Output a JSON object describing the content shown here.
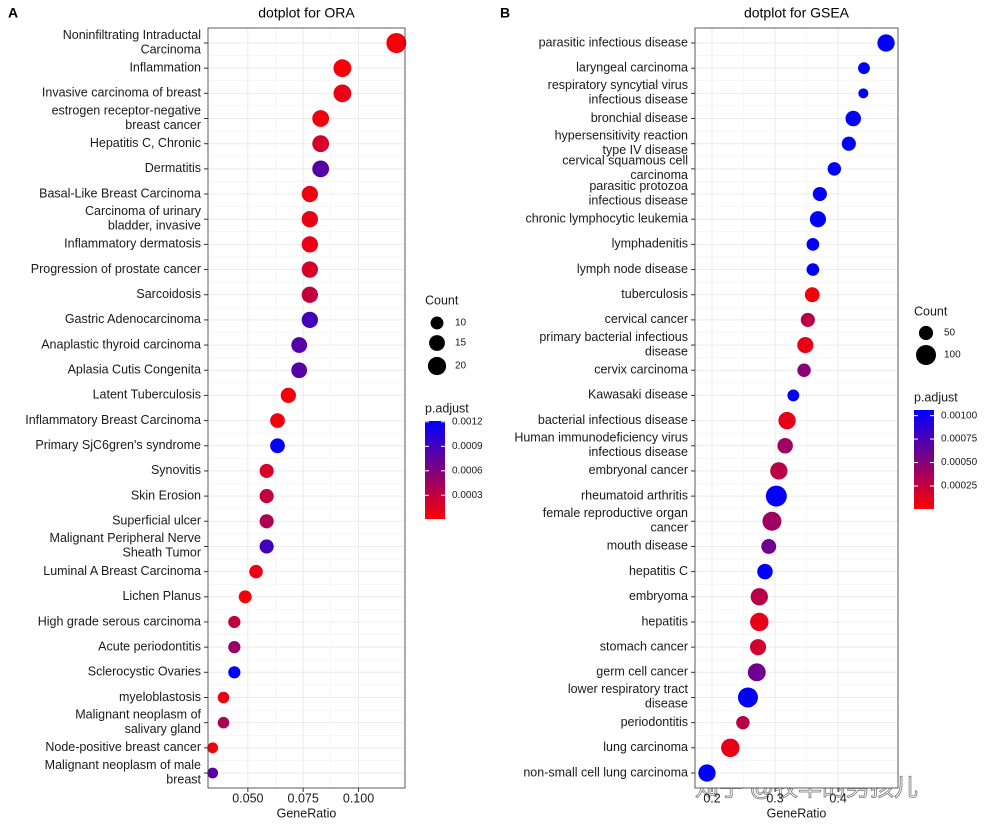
{
  "watermark": "知乎 @牧羊的男孩儿",
  "chart_data": [
    {
      "type": "dot",
      "panel_label": "A",
      "title": "dotplot for ORA",
      "x_label": "GeneRatio",
      "categories": [
        "Noninfiltrating Intraductal\nCarcinoma",
        "Inflammation",
        "Invasive carcinoma of breast",
        "estrogen receptor-negative\nbreast cancer",
        "Hepatitis C, Chronic",
        "Dermatitis",
        "Basal-Like Breast Carcinoma",
        "Carcinoma of urinary\nbladder, invasive",
        "Inflammatory dermatosis",
        "Progression of prostate cancer",
        "Sarcoidosis",
        "Gastric Adenocarcinoma",
        "Anaplastic thyroid carcinoma",
        "Aplasia Cutis Congenita",
        "Latent Tuberculosis",
        "Inflammatory Breast Carcinoma",
        "Primary SjC6gren's syndrome",
        "Synovitis",
        "Skin Erosion",
        "Superficial ulcer",
        "Malignant Peripheral Nerve\nSheath Tumor",
        "Luminal A Breast Carcinoma",
        "Lichen Planus",
        "High grade serous carcinoma",
        "Acute periodontitis",
        "Sclerocystic Ovaries",
        "myeloblastosis",
        "Malignant neoplasm of\nsalivary gland",
        "Node-positive breast cancer",
        "Malignant neoplasm of male\nbreast"
      ],
      "values": [
        0.1171,
        0.0927,
        0.0927,
        0.0829,
        0.0829,
        0.0829,
        0.078,
        0.078,
        0.078,
        0.078,
        0.078,
        0.078,
        0.0732,
        0.0732,
        0.0683,
        0.0634,
        0.0634,
        0.0585,
        0.0585,
        0.0585,
        0.0585,
        0.0537,
        0.0488,
        0.0439,
        0.0439,
        0.0439,
        0.039,
        0.039,
        0.0341,
        0.0341
      ],
      "counts": [
        24,
        19,
        19,
        17,
        17,
        17,
        16,
        16,
        16,
        16,
        16,
        16,
        15,
        15,
        14,
        13,
        13,
        12,
        12,
        12,
        12,
        11,
        10,
        9,
        9,
        9,
        8,
        8,
        7,
        7
      ],
      "p_adjust": [
        5e-05,
        5e-05,
        0.0001,
        8e-05,
        0.0002,
        0.0008,
        8e-05,
        0.0001,
        0.0001,
        0.0002,
        0.0003,
        0.0009,
        0.0008,
        0.0008,
        5e-05,
        8e-05,
        0.0012,
        0.0002,
        0.0003,
        0.0004,
        0.0009,
        0.0001,
        5e-05,
        0.0003,
        0.0005,
        0.0012,
        0.0001,
        0.0004,
        5e-05,
        0.0008
      ],
      "xlim": [
        0.032,
        0.121
      ],
      "xticks": [
        {
          "value": 0.05,
          "label": "0.050"
        },
        0.075,
        {
          "value": 0.1,
          "label": "0.100"
        }
      ],
      "grid": true,
      "size_legend": {
        "title": "Count",
        "ticks": [
          10,
          15,
          20
        ]
      },
      "color_legend": {
        "title": "p.adjust",
        "low": "#ff0000",
        "high": "#0000ff",
        "range": [
          1e-05,
          0.00121
        ],
        "ticks": [
          0.0012,
          0.0009,
          0.0006,
          0.0003
        ]
      }
    },
    {
      "type": "dot",
      "panel_label": "B",
      "title": "dotplot for GSEA",
      "x_label": "GeneRatio",
      "categories": [
        "parasitic infectious disease",
        "laryngeal carcinoma",
        "respiratory syncytial virus\ninfectious disease",
        "bronchial disease",
        "hypersensitivity reaction\ntype IV disease",
        "cervical squamous cell\ncarcinoma",
        "parasitic protozoa\ninfectious disease",
        "chronic lymphocytic leukemia",
        "lymphadenitis",
        "lymph node disease",
        "tuberculosis",
        "cervical cancer",
        "primary bacterial infectious\ndisease",
        "cervix carcinoma",
        "Kawasaki disease",
        "bacterial infectious disease",
        "Human immunodeficiency virus\ninfectious disease",
        "embryonal cancer",
        "rheumatoid arthritis",
        "female reproductive organ\ncancer",
        "mouth disease",
        "hepatitis C",
        "embryoma",
        "hepatitis",
        "stomach cancer",
        "germ cell cancer",
        "lower respiratory tract\ndisease",
        "periodontitis",
        "lung carcinoma",
        "non-small cell lung carcinoma"
      ],
      "values": [
        0.476,
        0.441,
        0.44,
        0.424,
        0.417,
        0.394,
        0.371,
        0.368,
        0.36,
        0.36,
        0.359,
        0.352,
        0.348,
        0.346,
        0.329,
        0.319,
        0.316,
        0.306,
        0.302,
        0.295,
        0.29,
        0.284,
        0.275,
        0.275,
        0.273,
        0.271,
        0.257,
        0.249,
        0.229,
        0.192
      ],
      "counts": [
        75,
        35,
        25,
        60,
        50,
        45,
        50,
        65,
        40,
        40,
        55,
        50,
        65,
        45,
        35,
        75,
        60,
        75,
        110,
        90,
        55,
        60,
        75,
        85,
        65,
        80,
        100,
        45,
        85,
        75
      ],
      "p_adjust": [
        0.00105,
        0.00105,
        0.00105,
        0.00105,
        0.00105,
        0.00105,
        0.00105,
        0.00105,
        0.00105,
        0.00105,
        5e-05,
        0.0003,
        0.0001,
        0.0005,
        0.00105,
        0.0001,
        0.0004,
        0.0003,
        0.00105,
        0.0004,
        0.0006,
        0.00105,
        0.0003,
        0.0001,
        0.0002,
        0.0006,
        0.00105,
        0.0003,
        0.0001,
        0.00105
      ],
      "xlim": [
        0.173,
        0.495
      ],
      "xticks": [
        0.2,
        0.3,
        0.4
      ],
      "grid": true,
      "size_legend": {
        "title": "Count",
        "ticks": [
          50,
          100
        ]
      },
      "color_legend": {
        "title": "p.adjust",
        "low": "#ff0000",
        "high": "#0000ff",
        "range": [
          5e-06,
          0.00106
        ],
        "ticks": [
          {
            "value": 0.001,
            "label": "0.00100"
          },
          {
            "value": 0.00075,
            "label": "0.00075"
          },
          {
            "value": 0.0005,
            "label": "0.00050"
          },
          {
            "value": 0.00025,
            "label": "0.00025"
          }
        ]
      }
    }
  ]
}
